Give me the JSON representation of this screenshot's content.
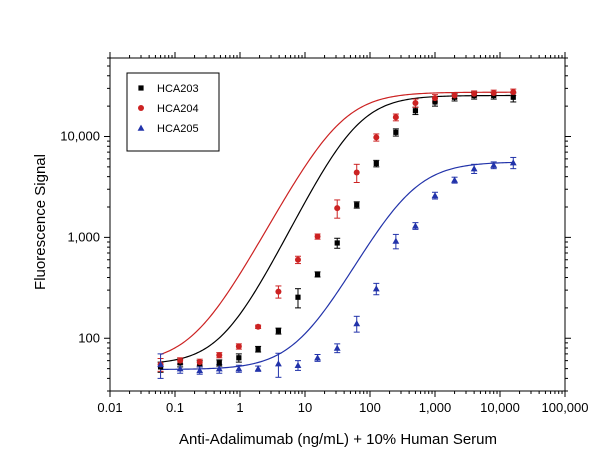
{
  "chart_data": {
    "type": "scatter",
    "xlabel": "Anti-Adalimumab (ng/mL) + 10% Human Serum",
    "ylabel": "Fluorescence Signal",
    "x_scale": "log",
    "y_scale": "log",
    "xlim": [
      0.01,
      100000
    ],
    "ylim": [
      30,
      60000
    ],
    "x_ticks": [
      {
        "value": 0.01,
        "label": "0.01"
      },
      {
        "value": 0.1,
        "label": "0.1"
      },
      {
        "value": 1,
        "label": "1"
      },
      {
        "value": 10,
        "label": "10"
      },
      {
        "value": 100,
        "label": "100"
      },
      {
        "value": 1000,
        "label": "1,000"
      },
      {
        "value": 10000,
        "label": "10,000"
      },
      {
        "value": 100000,
        "label": "100,000"
      }
    ],
    "y_ticks": [
      {
        "value": 100,
        "label": "100"
      },
      {
        "value": 1000,
        "label": "1,000"
      },
      {
        "value": 10000,
        "label": "10,000"
      }
    ],
    "grid": false,
    "legend_position": "top-left",
    "series": [
      {
        "name": "HCA203",
        "color": "#000000",
        "marker": "square",
        "x": [
          0.06,
          0.12,
          0.24,
          0.48,
          0.96,
          1.9,
          3.9,
          7.8,
          15.6,
          31.3,
          62.5,
          125,
          250,
          500,
          1000,
          2000,
          4000,
          8000,
          16000
        ],
        "y": [
          52,
          57,
          56,
          57,
          64,
          78,
          118,
          255,
          430,
          880,
          2100,
          5400,
          11000,
          18000,
          22000,
          24500,
          25500,
          25500,
          24500
        ],
        "err": [
          6,
          5,
          4,
          4,
          6,
          5,
          8,
          55,
          25,
          100,
          150,
          400,
          900,
          1500,
          2000,
          2000,
          2000,
          2000,
          2500
        ]
      },
      {
        "name": "HCA204",
        "color": "#cc2222",
        "marker": "circle",
        "x": [
          0.06,
          0.12,
          0.24,
          0.48,
          0.96,
          1.9,
          3.9,
          7.8,
          15.6,
          31.3,
          62.5,
          125,
          250,
          500,
          1000,
          2000,
          4000,
          8000,
          16000
        ],
        "y": [
          55,
          60,
          58,
          68,
          83,
          130,
          290,
          600,
          1020,
          1950,
          4400,
          9800,
          15500,
          21500,
          24000,
          25500,
          26500,
          27000,
          27500
        ],
        "err": [
          8,
          4,
          4,
          4,
          5,
          5,
          40,
          50,
          60,
          400,
          900,
          800,
          1200,
          2000,
          2000,
          1800,
          1800,
          1800,
          2000
        ]
      },
      {
        "name": "HCA205",
        "color": "#2233aa",
        "marker": "triangle",
        "x": [
          0.06,
          0.12,
          0.24,
          0.48,
          0.96,
          1.9,
          3.9,
          7.8,
          15.6,
          31.3,
          62.5,
          125,
          250,
          500,
          1000,
          2000,
          4000,
          8000,
          16000
        ],
        "y": [
          55,
          50,
          48,
          50,
          50,
          50,
          56,
          54,
          64,
          80,
          140,
          310,
          920,
          1300,
          2600,
          3700,
          4800,
          5200,
          5500
        ],
        "err": [
          15,
          5,
          4,
          5,
          4,
          3,
          15,
          6,
          5,
          8,
          25,
          40,
          150,
          100,
          200,
          250,
          500,
          400,
          700
        ]
      }
    ],
    "fits": [
      {
        "series": "HCA203",
        "color": "#000000",
        "bottom": 55,
        "top": 25500,
        "ec50": 62,
        "hill": 1.3
      },
      {
        "series": "HCA204",
        "color": "#cc2222",
        "bottom": 56,
        "top": 27500,
        "ec50": 35,
        "hill": 1.2
      },
      {
        "series": "HCA205",
        "color": "#2233aa",
        "bottom": 49,
        "top": 5600,
        "ec50": 420,
        "hill": 1.2
      }
    ]
  }
}
